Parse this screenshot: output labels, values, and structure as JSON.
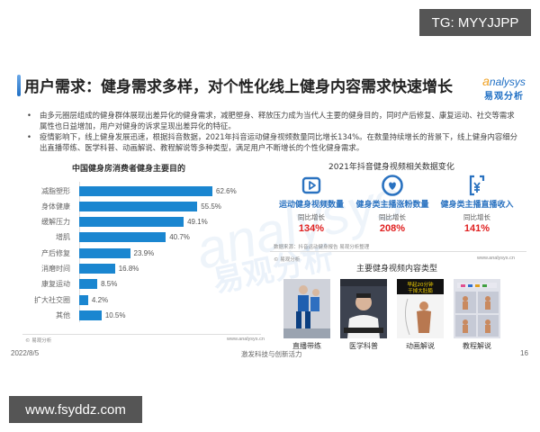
{
  "overlays": {
    "top_right_badge": "TG: MYYJJPP",
    "bottom_left_badge": "www.fsyddz.com"
  },
  "header": {
    "title": "用户需求：健身需求多样，对个性化线上健身内容需求快速增长",
    "logo_en_a": "a",
    "logo_en_rest": "nalysys",
    "logo_cn": "易观分析"
  },
  "bullets": [
    "由多元圈层组成的健身群体展现出差异化的健身需求，减肥塑身、释放压力成为当代人主要的健身目的，同时产后修复、康复运动、社交等需求属性也日益增加，用户对健身的诉求呈现出差异化的特征。",
    "疫情影响下，线上健身发展迅速，根据抖音数据，2021年抖音运动健身视频数量同比增长134%。在数量持续增长的背景下，线上健身内容细分出直播带练、医学科普、动画解说、教程解说等多种类型，满足用户不断增长的个性化健身需求。"
  ],
  "left_chart": {
    "title": "中国健身房消费者健身主要目的",
    "source_left": "© 易观分析",
    "source_right": "www.analysys.cn",
    "bar_color": "#1a86d0"
  },
  "chart_data": {
    "type": "bar",
    "orientation": "horizontal",
    "title": "中国健身房消费者健身主要目的",
    "categories": [
      "减脂塑形",
      "身体健康",
      "缓解压力",
      "增肌",
      "产后修复",
      "消磨时间",
      "康复运动",
      "扩大社交圈",
      "其他"
    ],
    "values": [
      62.6,
      55.5,
      49.1,
      40.7,
      23.9,
      16.8,
      8.5,
      4.2,
      10.5
    ],
    "value_labels": [
      "62.6%",
      "55.5%",
      "49.1%",
      "40.7%",
      "23.9%",
      "16.8%",
      "8.5%",
      "4.2%",
      "10.5%"
    ],
    "xlabel": "",
    "ylabel": "",
    "unit": "%",
    "grid": false
  },
  "right_panel": {
    "title": "2021年抖音健身视频相关数据变化",
    "stats": [
      {
        "icon": "play-video-icon",
        "label": "运动健身视频数量",
        "sub": "同比增长",
        "value": "134%"
      },
      {
        "icon": "heart-icon",
        "label": "健身类主播涨粉数量",
        "sub": "同比增长",
        "value": "208%"
      },
      {
        "icon": "yuan-document-icon",
        "label": "健身类主播直播收入",
        "sub": "同比增长",
        "value": "141%"
      }
    ],
    "source_note": "数据来源：抖音运动健身报告 易观分析整理",
    "source_left": "© 易观分析",
    "source_right": "www.analysys.cn",
    "types_title": "主要健身视频内容类型",
    "types": [
      {
        "label": "直播带练"
      },
      {
        "label": "医学科普"
      },
      {
        "label": "动画解说",
        "thumb_text": "早起20分钟 干掉大肚腩"
      },
      {
        "label": "教程解说"
      }
    ],
    "accent_blue": "#2a72c0",
    "accent_red": "#e02020"
  },
  "footer": {
    "date": "2022/8/5",
    "slogan": "激发科技与创新活力",
    "page": "16"
  },
  "watermark": {
    "en": "analysys",
    "cn": "易观分析"
  }
}
